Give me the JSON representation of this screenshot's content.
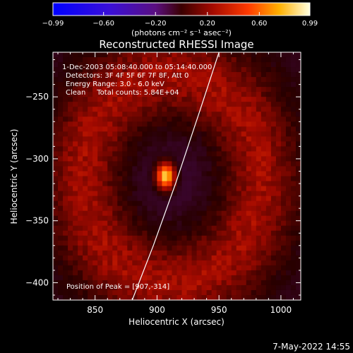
{
  "chart_data": {
    "type": "heatmap",
    "title": "Reconstructed RHESSI Image",
    "xlabel": "Heliocentric X (arcsec)",
    "ylabel": "Heliocentric Y (arcsec)",
    "xlim": [
      816,
      1016
    ],
    "ylim": [
      -414,
      -214
    ],
    "xticks": [
      850,
      900,
      950,
      1000
    ],
    "yticks": [
      -250,
      -300,
      -350,
      -400
    ],
    "colorbar": {
      "min": -0.99,
      "max": 0.99,
      "ticks": [
        -0.99,
        -0.6,
        -0.2,
        0.2,
        0.6,
        0.99
      ],
      "tick_labels": [
        "−0.99",
        "−0.60",
        "−0.20",
        "0.20",
        "0.60",
        "0.99"
      ],
      "label": "(photons cm⁻² s⁻¹ asec⁻²)"
    },
    "info_lines": [
      "1-Dec-2003 05:08:40.000 to 05:14:40.000",
      "Detectors: 3F 4F 5F 6F 7F 8F, Att 0",
      "Energy Range: 3.0 - 6.0 keV",
      "Clean     Total counts: 5.84E+04"
    ],
    "peak_label": "Position of Peak = [907,-314]",
    "peak": {
      "x": 907,
      "y": -314,
      "value": 0.99
    },
    "features": {
      "source_peak": {
        "x": 907,
        "y": -314,
        "sigma_x": 5,
        "sigma_y": 7,
        "value": 0.99
      },
      "ring": {
        "center_x": 912,
        "center_y": -316,
        "radius_x": 72,
        "radius_y": 84,
        "width": 19,
        "value": 0.25
      },
      "limb_curve": [
        [
          880,
          -414
        ],
        [
          897,
          -370
        ],
        [
          915,
          -320
        ],
        [
          935,
          -260
        ],
        [
          950,
          -214
        ]
      ]
    }
  },
  "footer": {
    "timestamp": "7-May-2022 14:55"
  }
}
